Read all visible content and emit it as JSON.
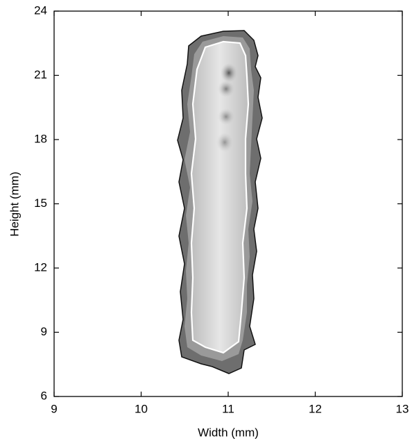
{
  "chart_data": {
    "type": "contour",
    "x_label": "Width (mm)",
    "y_label": "Height (mm)",
    "xlim": [
      9,
      13
    ],
    "ylim": [
      6,
      24
    ],
    "xticks": [
      9,
      10,
      11,
      12,
      13
    ],
    "yticks": [
      6,
      9,
      12,
      15,
      18,
      21,
      24
    ]
  }
}
